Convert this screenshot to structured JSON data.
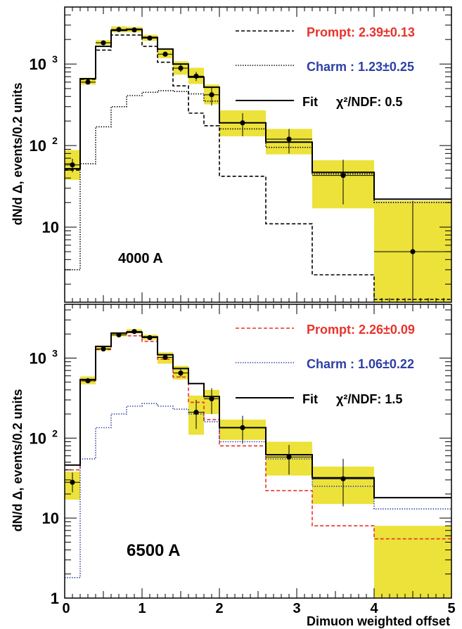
{
  "chart_data": {
    "x_axis": {
      "label": "Dimuon weighted offset",
      "range": [
        0,
        5
      ],
      "ticks": [
        "0",
        "1",
        "2",
        "3",
        "4",
        "5"
      ]
    },
    "y_axis": {
      "label": "dN/d Δ, events/0.2 units",
      "scale": "log"
    },
    "colors": {
      "band": "#ece23a",
      "points": "#000000"
    },
    "panels": [
      {
        "type": "histogram",
        "label": "4000 A",
        "ylim": [
          1.2,
          5000
        ],
        "y_ticks": [
          {
            "value": 10,
            "label": "10"
          },
          {
            "value": 100,
            "label": "10",
            "exp": "2"
          },
          {
            "value": 1000,
            "label": "10",
            "exp": "3"
          }
        ],
        "bin_edges": [
          0,
          0.2,
          0.4,
          0.6,
          0.8,
          1.0,
          1.2,
          1.4,
          1.6,
          1.8,
          2.0,
          2.6,
          3.2,
          4.0,
          5.0
        ],
        "data": {
          "x": [
            0.1,
            0.3,
            0.5,
            0.7,
            0.9,
            1.1,
            1.3,
            1.5,
            1.7,
            1.9,
            2.3,
            2.9,
            3.6,
            4.5
          ],
          "y": [
            58,
            600,
            1820,
            2650,
            2620,
            2080,
            1320,
            890,
            710,
            420,
            190,
            120,
            43,
            5
          ],
          "err_lo": [
            47,
            560,
            1740,
            2560,
            2520,
            1980,
            1250,
            800,
            620,
            310,
            130,
            80,
            19,
            1.3
          ],
          "err_hi": [
            69,
            650,
            1900,
            2750,
            2720,
            2180,
            1400,
            980,
            800,
            530,
            250,
            160,
            67,
            21
          ],
          "xerr": [
            0.1,
            0.1,
            0.1,
            0.1,
            0.1,
            0.1,
            0.1,
            0.1,
            0.1,
            0.1,
            0.3,
            0.3,
            0.4,
            0.5
          ]
        },
        "band": {
          "lo": [
            38,
            560,
            1720,
            2450,
            2450,
            1930,
            1180,
            740,
            570,
            320,
            130,
            78,
            17,
            1.2
          ],
          "hi": [
            88,
            680,
            1960,
            2900,
            2850,
            2280,
            1500,
            1080,
            900,
            560,
            270,
            160,
            66,
            21
          ]
        },
        "series": [
          {
            "name": "Prompt",
            "legend": "Prompt: 2.39±0.13",
            "style": "dashed",
            "color": "#000000",
            "legend_color": "#e8332b",
            "values": [
              50,
              650,
              1480,
              2270,
              2270,
              1650,
              1050,
              540,
              250,
              175,
              42,
              11,
              2.6,
              1.3
            ]
          },
          {
            "name": "Charm",
            "legend": "Charm : 1.23±0.25",
            "style": "dotted",
            "color": "#000000",
            "legend_color": "#2c3fa6",
            "values": [
              3,
              60,
              170,
              300,
              410,
              450,
              470,
              460,
              430,
              350,
              160,
              95,
              45,
              20
            ]
          },
          {
            "name": "Fit",
            "legend": "Fit",
            "chi2_label": "χ²/NDF:  0.5",
            "style": "solid",
            "color": "#000000",
            "legend_color": "#000000",
            "values": [
              52,
              660,
              1650,
              2580,
              2670,
              2120,
              1530,
              1000,
              690,
              520,
              190,
              110,
              47,
              22
            ]
          }
        ]
      },
      {
        "type": "histogram",
        "label": "6500 A",
        "ylim": [
          1,
          4700
        ],
        "y_ticks": [
          {
            "value": 1,
            "label": "1"
          },
          {
            "value": 10,
            "label": "10"
          },
          {
            "value": 100,
            "label": "10",
            "exp": "2"
          },
          {
            "value": 1000,
            "label": "10",
            "exp": "3"
          }
        ],
        "bin_edges": [
          0,
          0.2,
          0.4,
          0.6,
          0.8,
          1.0,
          1.2,
          1.4,
          1.6,
          1.8,
          2.0,
          2.6,
          3.2,
          4.0,
          5.0
        ],
        "data": {
          "x": [
            0.1,
            0.3,
            0.5,
            0.7,
            0.9,
            1.1,
            1.3,
            1.5,
            1.7,
            1.9,
            2.3,
            2.9,
            3.6,
            4.5
          ],
          "y": [
            28,
            520,
            1300,
            1950,
            2150,
            1800,
            1020,
            650,
            210,
            310,
            135,
            58,
            31,
            null
          ],
          "err_lo": [
            21,
            490,
            1240,
            1870,
            2080,
            1730,
            960,
            580,
            130,
            200,
            85,
            35,
            14,
            null
          ],
          "err_hi": [
            37,
            560,
            1370,
            2050,
            2250,
            1880,
            1100,
            740,
            300,
            420,
            190,
            82,
            55,
            null
          ],
          "xerr": [
            0.1,
            0.1,
            0.1,
            0.1,
            0.1,
            0.1,
            0.1,
            0.1,
            0.1,
            0.1,
            0.3,
            0.3,
            0.4,
            0.5
          ]
        },
        "band": {
          "lo": [
            17,
            470,
            1240,
            1860,
            2040,
            1690,
            850,
            540,
            110,
            200,
            95,
            34,
            15,
            1
          ],
          "hi": [
            38,
            590,
            1380,
            2100,
            2300,
            1960,
            1180,
            800,
            340,
            400,
            170,
            90,
            44,
            8
          ]
        },
        "series": [
          {
            "name": "Prompt",
            "legend": "Prompt: 2.26±0.09",
            "style": "dashed",
            "color": "#e8332b",
            "legend_color": "#e8332b",
            "values": [
              40,
              520,
              1280,
              2050,
              1900,
              1620,
              970,
              580,
              280,
              170,
              80,
              22,
              8,
              5.5
            ]
          },
          {
            "name": "Charm",
            "legend": "Charm : 1.06±0.22",
            "style": "dotted",
            "color": "#2c3fa6",
            "legend_color": "#2c3fa6",
            "values": [
              1.8,
              55,
              135,
              200,
              250,
              270,
              250,
              230,
              200,
              160,
              90,
              55,
              25,
              13
            ]
          },
          {
            "name": "Fit",
            "legend": "Fit",
            "chi2_label": "χ²/NDF:  1.5",
            "style": "solid",
            "color": "#000000",
            "legend_color": "#000000",
            "values": [
              46,
              540,
              1400,
              2050,
              2100,
              1840,
              1100,
              740,
              480,
              330,
              135,
              62,
              32,
              18
            ]
          }
        ]
      }
    ]
  }
}
